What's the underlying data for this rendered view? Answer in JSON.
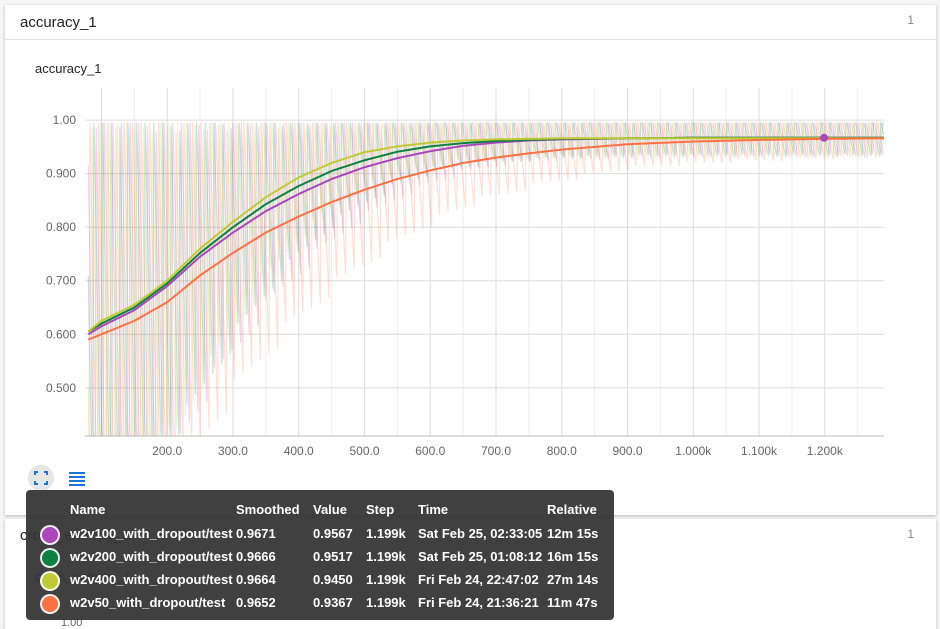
{
  "card1": {
    "title": "accuracy_1",
    "count": "1"
  },
  "card2": {
    "title": "cross_entropy_1",
    "count": "1",
    "partial_tick": "1.00"
  },
  "chart_data": {
    "type": "line",
    "title": "accuracy_1",
    "xlabel": "",
    "ylabel": "",
    "xlim": [
      75,
      1290
    ],
    "ylim": [
      0.41,
      1.06
    ],
    "x_ticks": [
      {
        "value": 200,
        "label": "200.0"
      },
      {
        "value": 300,
        "label": "300.0"
      },
      {
        "value": 400,
        "label": "400.0"
      },
      {
        "value": 500,
        "label": "500.0"
      },
      {
        "value": 600,
        "label": "600.0"
      },
      {
        "value": 700,
        "label": "700.0"
      },
      {
        "value": 800,
        "label": "800.0"
      },
      {
        "value": 900,
        "label": "900.0"
      },
      {
        "value": 1000,
        "label": "1.000k"
      },
      {
        "value": 1100,
        "label": "1.100k"
      },
      {
        "value": 1200,
        "label": "1.200k"
      }
    ],
    "y_ticks": [
      {
        "value": 0.5,
        "label": "0.500"
      },
      {
        "value": 0.6,
        "label": "0.600"
      },
      {
        "value": 0.7,
        "label": "0.700"
      },
      {
        "value": 0.8,
        "label": "0.800"
      },
      {
        "value": 0.9,
        "label": "0.900"
      },
      {
        "value": 1.0,
        "label": "1.00"
      }
    ],
    "grid": true,
    "hover_step": 1199,
    "series": [
      {
        "name": "w2v100_with_dropout/test",
        "color": "#ab47bc",
        "x": [
          80,
          100,
          150,
          200,
          250,
          300,
          350,
          400,
          450,
          500,
          550,
          600,
          650,
          700,
          750,
          800,
          900,
          1000,
          1100,
          1200,
          1290
        ],
        "values": [
          0.6,
          0.615,
          0.645,
          0.69,
          0.745,
          0.79,
          0.83,
          0.862,
          0.89,
          0.912,
          0.929,
          0.942,
          0.952,
          0.958,
          0.962,
          0.964,
          0.966,
          0.967,
          0.967,
          0.967,
          0.967
        ]
      },
      {
        "name": "w2v200_with_dropout/test",
        "color": "#0d8043",
        "x": [
          80,
          100,
          150,
          200,
          250,
          300,
          350,
          400,
          450,
          500,
          550,
          600,
          650,
          700,
          750,
          800,
          900,
          1000,
          1100,
          1200,
          1290
        ],
        "values": [
          0.605,
          0.62,
          0.65,
          0.695,
          0.752,
          0.8,
          0.843,
          0.877,
          0.905,
          0.925,
          0.941,
          0.951,
          0.957,
          0.961,
          0.963,
          0.965,
          0.966,
          0.967,
          0.967,
          0.967,
          0.967
        ]
      },
      {
        "name": "w2v400_with_dropout/test",
        "color": "#c0ca33",
        "x": [
          80,
          100,
          150,
          200,
          250,
          300,
          350,
          400,
          450,
          500,
          550,
          600,
          650,
          700,
          750,
          800,
          900,
          1000,
          1100,
          1200,
          1290
        ],
        "values": [
          0.605,
          0.625,
          0.655,
          0.7,
          0.76,
          0.81,
          0.856,
          0.893,
          0.92,
          0.94,
          0.951,
          0.958,
          0.962,
          0.964,
          0.965,
          0.966,
          0.966,
          0.966,
          0.966,
          0.966,
          0.966
        ]
      },
      {
        "name": "w2v50_with_dropout/test",
        "color": "#ff7043",
        "x": [
          80,
          100,
          150,
          200,
          250,
          300,
          350,
          400,
          450,
          500,
          550,
          600,
          650,
          700,
          750,
          800,
          900,
          1000,
          1100,
          1200,
          1290
        ],
        "values": [
          0.59,
          0.6,
          0.625,
          0.66,
          0.71,
          0.752,
          0.79,
          0.82,
          0.847,
          0.87,
          0.89,
          0.906,
          0.92,
          0.93,
          0.938,
          0.945,
          0.955,
          0.96,
          0.963,
          0.965,
          0.966
        ]
      }
    ]
  },
  "tooltip": {
    "headers": {
      "name": "Name",
      "smoothed": "Smoothed",
      "value": "Value",
      "step": "Step",
      "time": "Time",
      "relative": "Relative"
    },
    "rows": [
      {
        "color": "#ab47bc",
        "name": "w2v100_with_dropout/test",
        "smoothed": "0.9671",
        "value": "0.9567",
        "step": "1.199k",
        "time": "Sat Feb 25, 02:33:05",
        "relative": "12m 15s"
      },
      {
        "color": "#0d8043",
        "name": "w2v200_with_dropout/test",
        "smoothed": "0.9666",
        "value": "0.9517",
        "step": "1.199k",
        "time": "Sat Feb 25, 01:08:12",
        "relative": "16m 15s"
      },
      {
        "color": "#c0ca33",
        "name": "w2v400_with_dropout/test",
        "smoothed": "0.9664",
        "value": "0.9450",
        "step": "1.199k",
        "time": "Fri Feb 24, 22:47:02",
        "relative": "27m 14s"
      },
      {
        "color": "#ff7043",
        "name": "w2v50_with_dropout/test",
        "smoothed": "0.9652",
        "value": "0.9367",
        "step": "1.199k",
        "time": "Fri Feb 24, 21:36:21",
        "relative": "11m 47s"
      }
    ]
  },
  "icons": {
    "expand": "fullscreen-icon",
    "list": "list-icon"
  }
}
